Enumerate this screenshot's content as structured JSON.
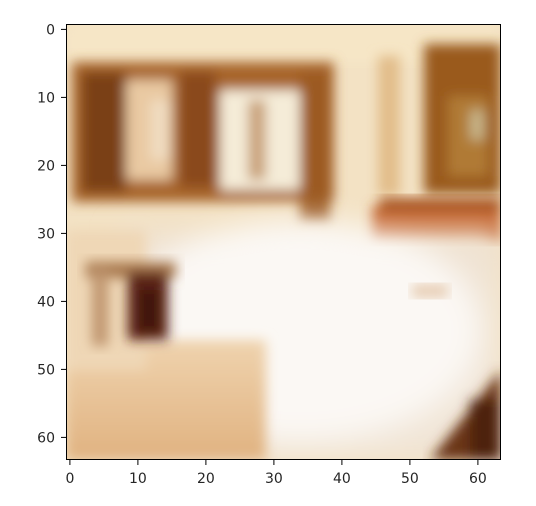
{
  "image": {
    "subject": "blurry low-resolution photo of a bedroom",
    "palette": {
      "wall": "#f3e2c4",
      "bed": "#f4ece2",
      "floor": "#e9c49a",
      "wood_frame": "#9c5a24",
      "dark_wood": "#6a3414",
      "orange_wood": "#c8642a",
      "window_light": "#f5ecd8"
    }
  },
  "axes": {
    "x_ticks": [
      "0",
      "10",
      "20",
      "30",
      "40",
      "50",
      "60"
    ],
    "y_ticks": [
      "0",
      "10",
      "20",
      "30",
      "40",
      "50",
      "60"
    ],
    "x_range": [
      -0.5,
      63.5
    ],
    "y_range": [
      -0.5,
      63.5
    ]
  }
}
